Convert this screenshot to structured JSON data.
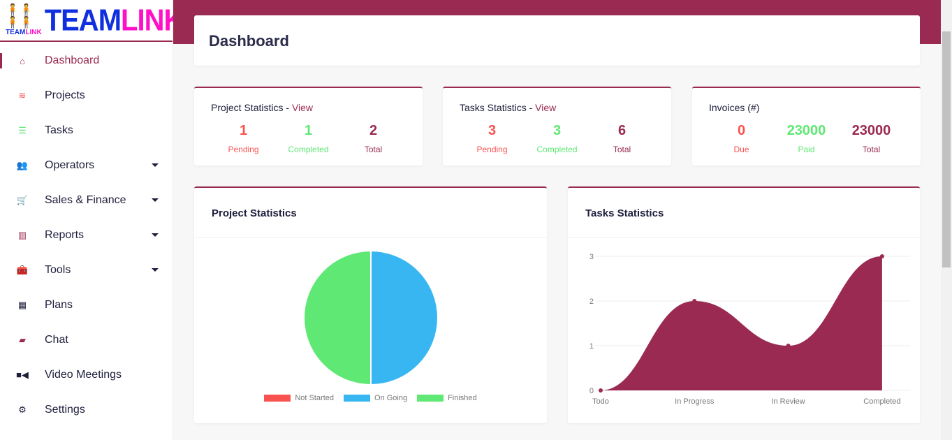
{
  "logo": {
    "small_a": "TEAM",
    "small_b": "LINK",
    "big_a": "TEAM",
    "big_b": "LINK"
  },
  "sidebar": {
    "items": [
      {
        "label": "Dashboard",
        "icon": "home-icon",
        "color": "#9b2a52"
      },
      {
        "label": "Projects",
        "icon": "layers-icon",
        "color": "#f9524f"
      },
      {
        "label": "Tasks",
        "icon": "tasks-icon",
        "color": "#5fe874"
      },
      {
        "label": "Operators",
        "icon": "users-icon",
        "color": "#1e1e3c"
      },
      {
        "label": "Sales & Finance",
        "icon": "cart-icon",
        "color": "#5fe874"
      },
      {
        "label": "Reports",
        "icon": "bar-chart-icon",
        "color": "#9b2a52"
      },
      {
        "label": "Tools",
        "icon": "toolbox-icon",
        "color": "#1e1e3c"
      },
      {
        "label": "Plans",
        "icon": "plans-icon",
        "color": "#1e1e3c"
      },
      {
        "label": "Chat",
        "icon": "chat-icon",
        "color": "#9b2a52"
      },
      {
        "label": "Video Meetings",
        "icon": "video-icon",
        "color": "#1e1e3c"
      },
      {
        "label": "Settings",
        "icon": "gear-icon",
        "color": "#1e1e3c"
      }
    ]
  },
  "page_title": "Dashboard",
  "stats": [
    {
      "title": "Project Statistics",
      "sep": " - ",
      "link": "View",
      "items": [
        {
          "value": "1",
          "label": "Pending",
          "color": "#f9524f"
        },
        {
          "value": "1",
          "label": "Completed",
          "color": "#5fe874"
        },
        {
          "value": "2",
          "label": "Total",
          "color": "#9b2a52"
        }
      ]
    },
    {
      "title": "Tasks Statistics",
      "sep": " - ",
      "link": "View",
      "items": [
        {
          "value": "3",
          "label": "Pending",
          "color": "#f9524f"
        },
        {
          "value": "3",
          "label": "Completed",
          "color": "#5fe874"
        },
        {
          "value": "6",
          "label": "Total",
          "color": "#9b2a52"
        }
      ]
    },
    {
      "title": "Invoices (#)",
      "sep": "",
      "link": "",
      "items": [
        {
          "value": "0",
          "label": "Due",
          "color": "#f9524f"
        },
        {
          "value": "23000",
          "label": "Paid",
          "color": "#5fe874"
        },
        {
          "value": "23000",
          "label": "Total",
          "color": "#9b2a52"
        }
      ]
    }
  ],
  "chart_data": [
    {
      "type": "pie",
      "title": "Project Statistics",
      "categories": [
        "Not Started",
        "On Going",
        "Finished"
      ],
      "values": [
        0,
        1,
        1
      ],
      "colors": [
        "#f9524f",
        "#38b6f2",
        "#5fe874"
      ],
      "legend": "bottom"
    },
    {
      "type": "area",
      "title": "Tasks Statistics",
      "categories": [
        "Todo",
        "In Progress",
        "In Review",
        "Completed"
      ],
      "values": [
        0,
        2,
        1,
        3
      ],
      "yticks": [
        0,
        1,
        2,
        3
      ],
      "ylim": [
        0,
        3
      ],
      "color": "#9b2a52"
    }
  ]
}
